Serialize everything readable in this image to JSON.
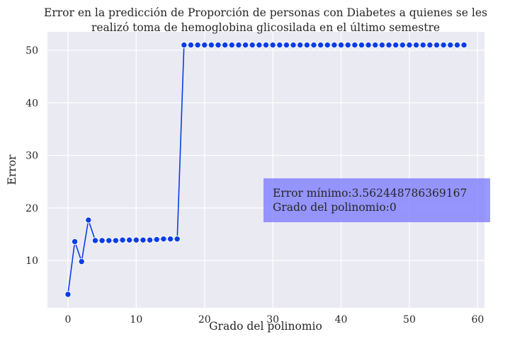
{
  "chart_data": {
    "type": "line",
    "title_line1": "Error en la predicción de Proporción de personas con Diabetes a quienes se les",
    "title_line2": "realizó toma de hemoglobina glicosilada en el último semestre",
    "xlabel": "Grado del polinomio",
    "ylabel": "Error",
    "xlim": [
      -3,
      61
    ],
    "ylim": [
      1,
      53.5
    ],
    "x_ticks": [
      0,
      10,
      20,
      30,
      40,
      50,
      60
    ],
    "y_ticks": [
      10,
      20,
      30,
      40,
      50
    ],
    "grid": true,
    "series": [
      {
        "color": "#0b3de6",
        "x": [
          0,
          1,
          2,
          3,
          4,
          5,
          6,
          7,
          8,
          9,
          10,
          11,
          12,
          13,
          14,
          15,
          16,
          17,
          18,
          19,
          20,
          21,
          22,
          23,
          24,
          25,
          26,
          27,
          28,
          29,
          30,
          31,
          32,
          33,
          34,
          35,
          36,
          37,
          38,
          39,
          40,
          41,
          42,
          43,
          44,
          45,
          46,
          47,
          48,
          49,
          50,
          51,
          52,
          53,
          54,
          55,
          56,
          57,
          58
        ],
        "y": [
          3.56,
          13.6,
          9.8,
          17.7,
          13.8,
          13.8,
          13.8,
          13.8,
          13.9,
          13.9,
          13.9,
          13.9,
          13.9,
          14.0,
          14.1,
          14.1,
          14.1,
          51,
          51,
          51,
          51,
          51,
          51,
          51,
          51,
          51,
          51,
          51,
          51,
          51,
          51,
          51,
          51,
          51,
          51,
          51,
          51,
          51,
          51,
          51,
          51,
          51,
          51,
          51,
          51,
          51,
          51,
          51,
          51,
          51,
          51,
          51,
          51,
          51,
          51,
          51,
          51,
          51,
          51
        ]
      }
    ],
    "annotation": {
      "line1": "Error mínimo:3.562448786369167",
      "line2": "Grado del polinomio:0",
      "box_color": "#7b7bff"
    }
  }
}
